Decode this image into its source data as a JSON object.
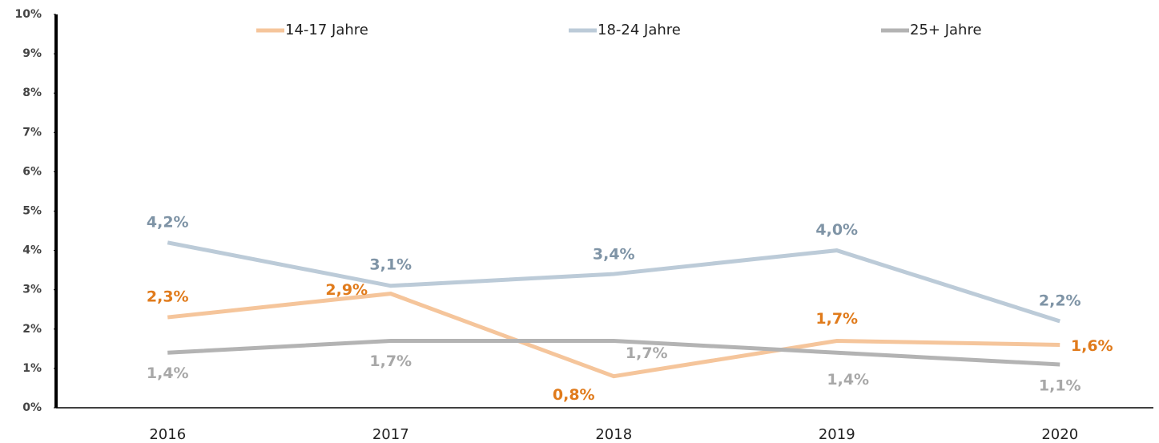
{
  "chart_data": {
    "type": "line",
    "categories": [
      "2016",
      "2017",
      "2018",
      "2019",
      "2020"
    ],
    "ylim": [
      0,
      10
    ],
    "yticks": [
      {
        "value": 0,
        "label": "0%"
      },
      {
        "value": 1,
        "label": "1%"
      },
      {
        "value": 2,
        "label": "2%"
      },
      {
        "value": 3,
        "label": "3%"
      },
      {
        "value": 4,
        "label": "4%"
      },
      {
        "value": 5,
        "label": "5%"
      },
      {
        "value": 6,
        "label": "6%"
      },
      {
        "value": 7,
        "label": "7%"
      },
      {
        "value": 8,
        "label": "8%"
      },
      {
        "value": 9,
        "label": "9%"
      },
      {
        "value": 10,
        "label": "10%"
      }
    ],
    "grid": false,
    "legend": "top",
    "series": [
      {
        "name": "14-17 Jahre",
        "color": "#f5c59b",
        "label_color": "#e07b1c",
        "values": [
          2.3,
          2.9,
          0.8,
          1.7,
          1.6
        ],
        "value_labels": [
          "2,3%",
          "2,9%",
          "0,8%",
          "1,7%",
          "1,6%"
        ]
      },
      {
        "name": "18-24 Jahre",
        "color": "#bccbd8",
        "label_color": "#7f94a6",
        "values": [
          4.2,
          3.1,
          3.4,
          4.0,
          2.2
        ],
        "value_labels": [
          "4,2%",
          "3,1%",
          "3,4%",
          "4,0%",
          "2,2%"
        ]
      },
      {
        "name": "25+ Jahre",
        "color": "#b3b3b3",
        "label_color": "#a8a8a8",
        "values": [
          1.4,
          1.7,
          1.7,
          1.4,
          1.1
        ],
        "value_labels": [
          "1,4%",
          "1,7%",
          "1,7%",
          "1,4%",
          "1,1%"
        ]
      }
    ]
  }
}
